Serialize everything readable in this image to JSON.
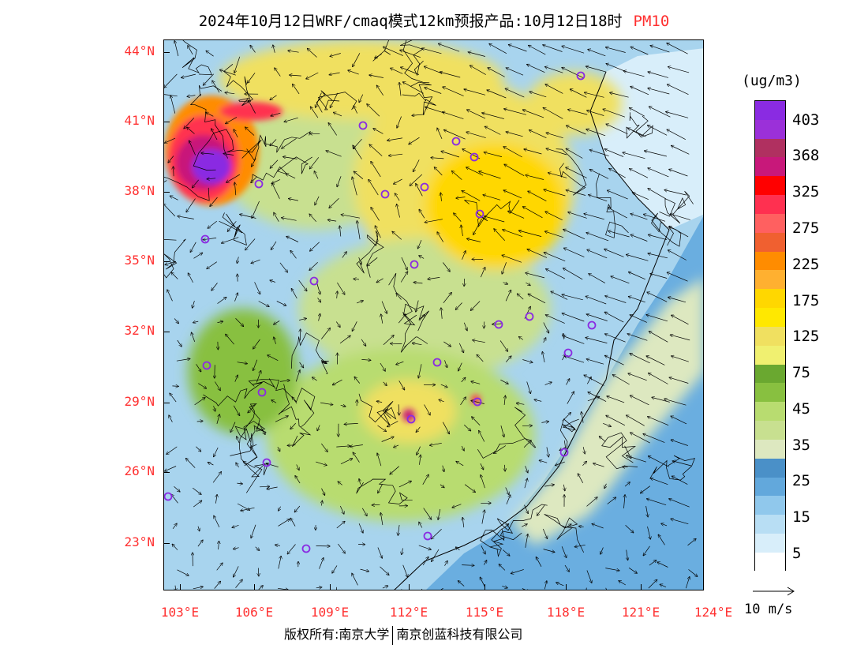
{
  "title": {
    "main": "2024年10月12日WRF/cmaq模式12km预报产品:10月12日18时",
    "pollutant": "PM10"
  },
  "colorbar": {
    "unit": "(ug/m3)",
    "labels": [
      "403",
      "368",
      "325",
      "275",
      "225",
      "175",
      "125",
      "75",
      "45",
      "35",
      "25",
      "15",
      "5"
    ],
    "colors": [
      "#8a2be2",
      "#9b30d9",
      "#b03060",
      "#c8187a",
      "#ff0000",
      "#ff3050",
      "#ff6060",
      "#f06030",
      "#ff8c00",
      "#ffb030",
      "#ffd700",
      "#ffe800",
      "#f0e060",
      "#f0f070",
      "#6aa830",
      "#88c040",
      "#b8dc70",
      "#c8e090",
      "#dde8c0",
      "#4a90c8",
      "#62a8dc",
      "#90c8ec",
      "#b8def4",
      "#d8eefa",
      "#ffffff"
    ]
  },
  "axes": {
    "lat_labels": [
      "44°N",
      "41°N",
      "38°N",
      "35°N",
      "32°N",
      "29°N",
      "26°N",
      "23°N"
    ],
    "lon_labels": [
      "103°E",
      "106°E",
      "109°E",
      "112°E",
      "115°E",
      "118°E",
      "121°E",
      "124°E"
    ]
  },
  "wind_reference": {
    "label": "10 m/s"
  },
  "footer": {
    "copyright": "版权所有:南京大学",
    "company": "南京创蓝科技有限公司"
  },
  "map_colors": {
    "sea": "#6aaee0",
    "low": "#a8d4ee",
    "mid": "#c8e090",
    "green": "#88c040",
    "yellow": "#f0e060",
    "gold": "#ffd700",
    "orange": "#ff8c00",
    "red": "#ff3050",
    "purple": "#8a2be2"
  }
}
